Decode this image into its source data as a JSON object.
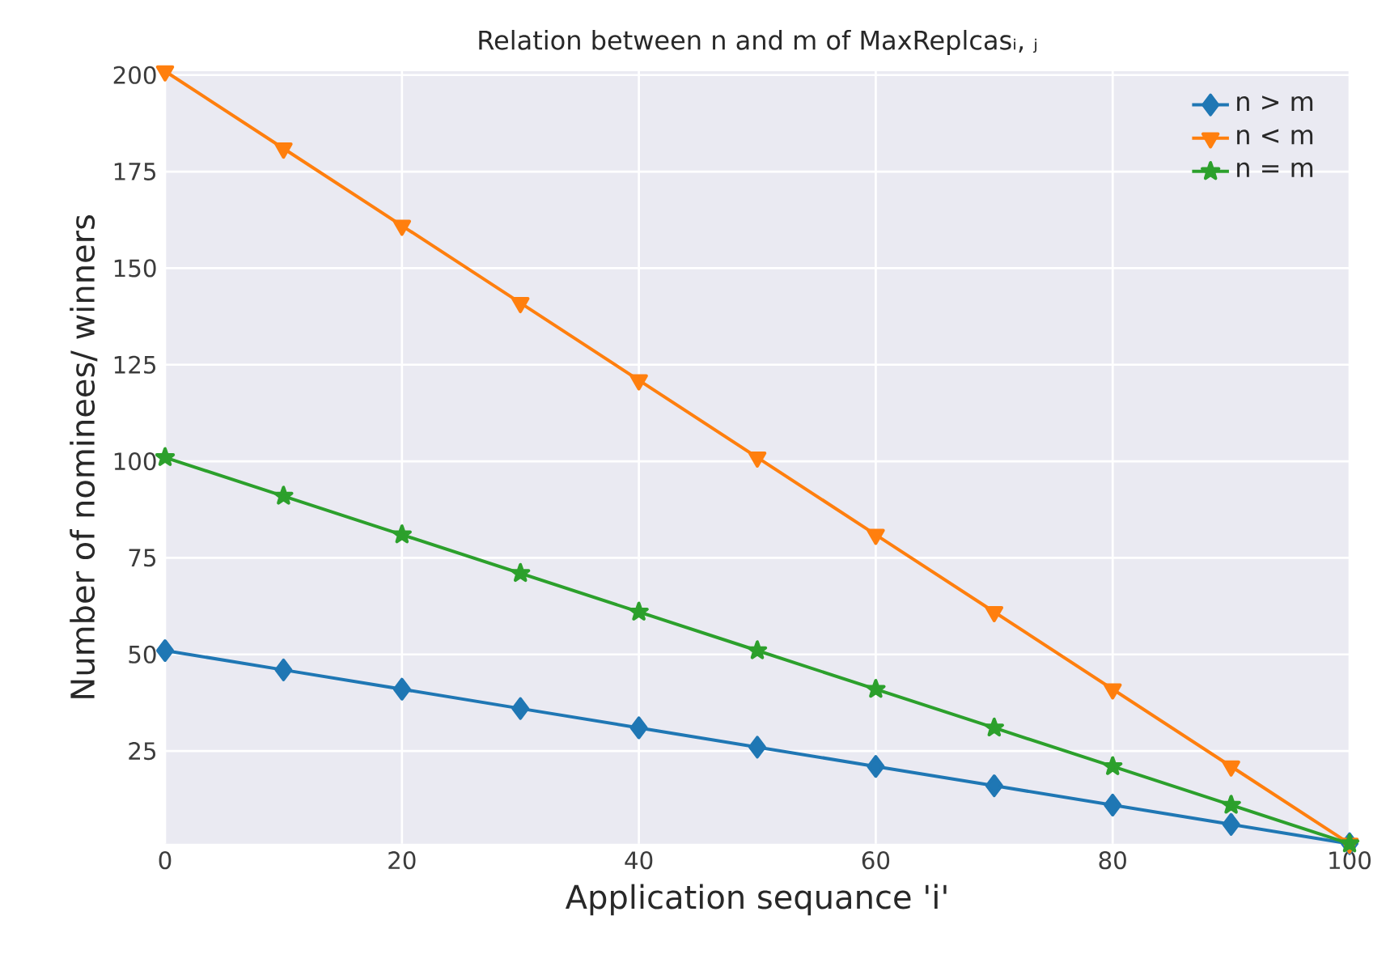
{
  "chart_data": {
    "type": "line",
    "title": "Relation between n and m of MaxReplcasᵢ, ⱼ",
    "xlabel": "Application sequance 'i'",
    "ylabel": "Number of nominees/ winners",
    "x": [
      0,
      10,
      20,
      30,
      40,
      50,
      60,
      70,
      80,
      90,
      100
    ],
    "series": [
      {
        "name": "n > m",
        "color": "#1f77b4",
        "marker": "diamond",
        "values": [
          51,
          46,
          41,
          36,
          31,
          26,
          21,
          16,
          11,
          6,
          1
        ]
      },
      {
        "name": "n < m",
        "color": "#ff7f0e",
        "marker": "triangle",
        "values": [
          201,
          181,
          161,
          141,
          121,
          101,
          81,
          61,
          41,
          21,
          1
        ]
      },
      {
        "name": "n = m",
        "color": "#2ca02c",
        "marker": "star",
        "values": [
          101,
          91,
          81,
          71,
          61,
          51,
          41,
          31,
          21,
          11,
          1
        ]
      }
    ],
    "xlim": [
      0,
      100
    ],
    "xticks": [
      0,
      20,
      40,
      60,
      80,
      100
    ],
    "ylim": [
      1,
      201
    ],
    "yticks": [
      25,
      50,
      75,
      100,
      125,
      150,
      175,
      200
    ],
    "grid": true,
    "legend": "top right",
    "line_style": "solid"
  }
}
